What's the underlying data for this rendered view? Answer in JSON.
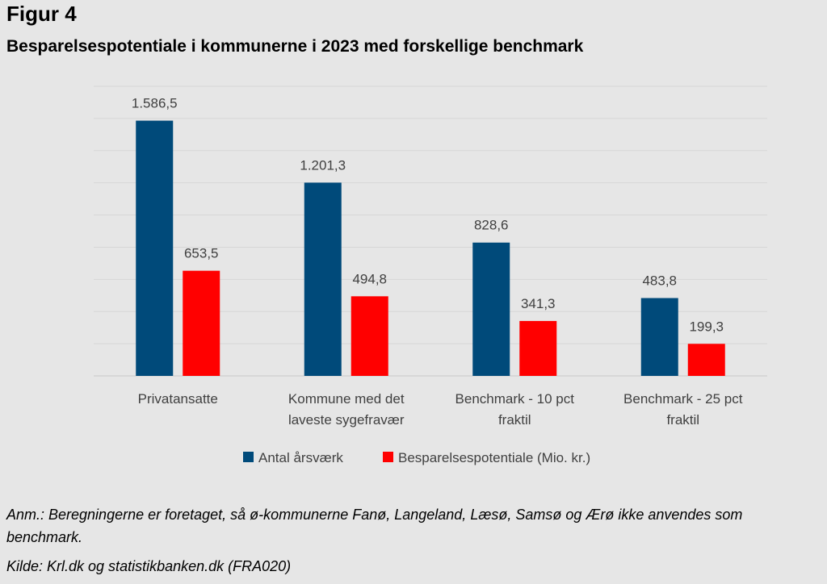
{
  "figure_label": "Figur 4",
  "title": "Besparelsespotentiale i kommunerne i 2023 med forskellige benchmark",
  "chart_data": {
    "type": "bar",
    "categories": [
      [
        "Privatansatte"
      ],
      [
        "Kommune med det",
        "laveste sygefravær"
      ],
      [
        "Benchmark - 10 pct",
        "fraktil"
      ],
      [
        "Benchmark - 25 pct",
        "fraktil"
      ]
    ],
    "series": [
      {
        "name": "Antal årsværk",
        "color": "#004a7a",
        "values": [
          1586.5,
          1201.3,
          828.6,
          483.8
        ],
        "labels": [
          "1.586,5",
          "1.201,3",
          "828,6",
          "483,8"
        ]
      },
      {
        "name": "Besparelsespotentiale (Mio. kr.)",
        "color": "#ff0000",
        "values": [
          653.5,
          494.8,
          341.3,
          199.3
        ],
        "labels": [
          "653,5",
          "494,8",
          "341,3",
          "199,3"
        ]
      }
    ],
    "ylim": [
      0,
      1800
    ],
    "grid": true,
    "legend_position": "bottom"
  },
  "notes": {
    "anm": "Anm.: Beregningerne er foretaget, så ø-kommunerne Fanø, Langeland, Læsø, Samsø og Ærø ikke anvendes som benchmark.",
    "kilde": "Kilde: Krl.dk og statistikbanken.dk (FRA020)"
  }
}
